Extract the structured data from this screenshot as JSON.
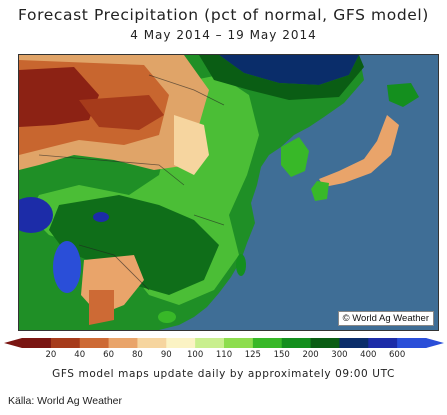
{
  "header": {
    "title": "Forecast Precipitation (pct of normal, GFS model)",
    "date_range": "4 May 2014 – 19 May 2014"
  },
  "map": {
    "watermark": "© World Ag Weather",
    "ocean_color": "#3f6e96"
  },
  "legend": {
    "ticks": [
      "20",
      "40",
      "60",
      "80",
      "90",
      "100",
      "110",
      "125",
      "150",
      "200",
      "300",
      "400",
      "600"
    ],
    "colors": [
      "#7a1512",
      "#a63b1b",
      "#cd6a35",
      "#e9a46a",
      "#f6d59f",
      "#fbf3c4",
      "#c9ef8e",
      "#8ddd4e",
      "#38b828",
      "#148f1e",
      "#0a5d14",
      "#0a2d6a",
      "#1c2ca8",
      "#2a4ed8"
    ]
  },
  "footer": {
    "note": "GFS model maps update daily by approximately 09:00 UTC",
    "source": "Källa: World Ag Weather"
  }
}
